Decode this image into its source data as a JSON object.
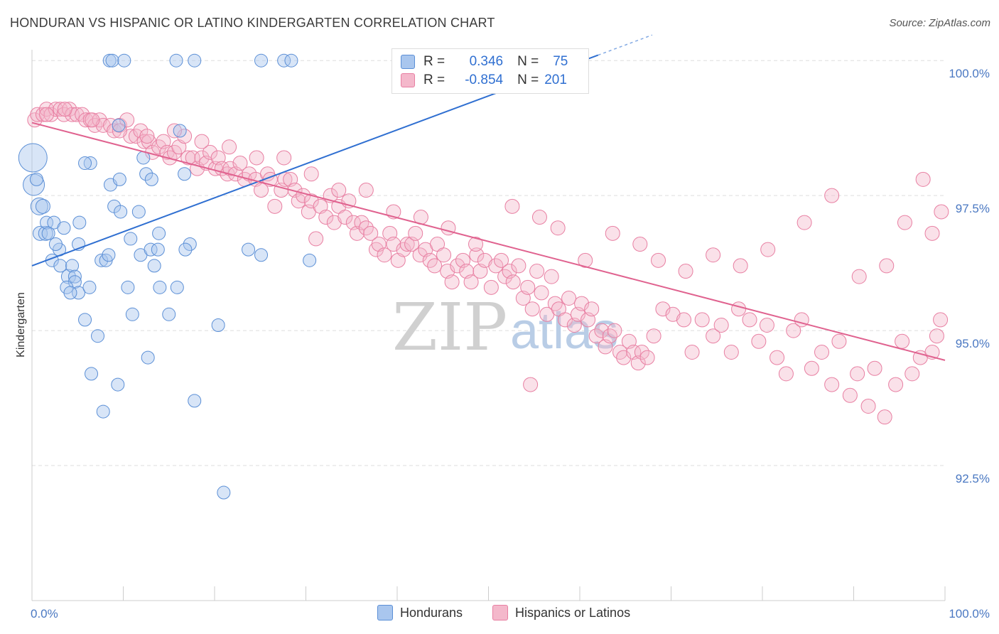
{
  "title": "HONDURAN VS HISPANIC OR LATINO KINDERGARTEN CORRELATION CHART",
  "source": "Source: ZipAtlas.com",
  "watermark": {
    "zip": "ZIP",
    "atlas": "atlas"
  },
  "legend": {
    "rows": [
      {
        "r_label": "R =",
        "r_value": "0.346",
        "n_label": "N =",
        "n_value": "75"
      },
      {
        "r_label": "R =",
        "r_value": "-0.854",
        "n_label": "N =",
        "n_value": "201"
      }
    ]
  },
  "colors": {
    "blue_fill": "#a9c6ee",
    "blue_stroke": "#5b8fd6",
    "blue_line": "#2f6fd1",
    "pink_fill": "#f4b8cb",
    "pink_stroke": "#e87fa2",
    "pink_line": "#e0628f",
    "tick_text": "#4a78c2"
  },
  "chart_data": {
    "type": "scatter",
    "title": "HONDURAN VS HISPANIC OR LATINO KINDERGARTEN CORRELATION CHART",
    "xlabel": "",
    "ylabel": "Kindergarten",
    "xlim": [
      0,
      100
    ],
    "ylim": [
      90.0,
      100.2
    ],
    "x_tick_labels": [
      "0.0%",
      "100.0%"
    ],
    "y_ticks": [
      92.5,
      95.0,
      97.5,
      100.0
    ],
    "y_tick_labels": [
      "92.5%",
      "95.0%",
      "97.5%",
      "100.0%"
    ],
    "grid": true,
    "legend_position": "bottom",
    "series": [
      {
        "name": "Hondurans",
        "color": "#a9c6ee",
        "trend": {
          "x": [
            0,
            62
          ],
          "y": [
            96.2,
            100.1
          ]
        },
        "points": [
          [
            0.1,
            98.2,
            2.0
          ],
          [
            0.2,
            97.7,
            1.5
          ],
          [
            0.8,
            97.3,
            1.2
          ],
          [
            1.2,
            97.3,
            1.0
          ],
          [
            0.9,
            96.8,
            1.0
          ],
          [
            1.5,
            96.8,
            1.0
          ],
          [
            1.6,
            97.0,
            0.9
          ],
          [
            2.4,
            97.0,
            0.9
          ],
          [
            2.2,
            96.3,
            0.9
          ],
          [
            3.1,
            96.2,
            0.9
          ],
          [
            3.5,
            96.9,
            0.9
          ],
          [
            3.0,
            96.5,
            0.9
          ],
          [
            4.0,
            96.0,
            1.0
          ],
          [
            4.4,
            96.2,
            0.9
          ],
          [
            4.7,
            96.0,
            0.9
          ],
          [
            4.7,
            95.9,
            0.9
          ],
          [
            5.1,
            95.7,
            0.9
          ],
          [
            3.8,
            95.8,
            0.9
          ],
          [
            6.3,
            95.8,
            0.9
          ],
          [
            5.8,
            95.2,
            0.9
          ],
          [
            7.6,
            96.3,
            0.9
          ],
          [
            8.1,
            96.3,
            0.9
          ],
          [
            8.4,
            96.4,
            0.9
          ],
          [
            5.1,
            96.6,
            0.9
          ],
          [
            5.2,
            97.0,
            0.9
          ],
          [
            6.4,
            98.1,
            0.9
          ],
          [
            8.6,
            97.7,
            0.9
          ],
          [
            9.0,
            97.3,
            0.9
          ],
          [
            9.7,
            97.2,
            0.9
          ],
          [
            9.6,
            97.8,
            0.9
          ],
          [
            12.2,
            98.2,
            0.9
          ],
          [
            12.5,
            97.9,
            0.9
          ],
          [
            13.1,
            97.8,
            0.9
          ],
          [
            11.7,
            97.2,
            0.9
          ],
          [
            10.8,
            96.7,
            0.9
          ],
          [
            11.9,
            96.4,
            0.9
          ],
          [
            13.0,
            96.5,
            0.9
          ],
          [
            13.8,
            96.5,
            0.9
          ],
          [
            13.9,
            96.8,
            0.9
          ],
          [
            13.4,
            96.2,
            0.9
          ],
          [
            14.0,
            95.8,
            0.9
          ],
          [
            10.5,
            95.8,
            0.9
          ],
          [
            11.0,
            95.3,
            0.9
          ],
          [
            15.0,
            95.3,
            0.9
          ],
          [
            15.9,
            95.8,
            0.9
          ],
          [
            16.2,
            98.7,
            0.9
          ],
          [
            16.7,
            97.9,
            0.9
          ],
          [
            17.3,
            96.6,
            0.9
          ],
          [
            16.8,
            96.5,
            0.9
          ],
          [
            7.2,
            94.9,
            0.9
          ],
          [
            6.5,
            94.2,
            0.9
          ],
          [
            9.4,
            94.0,
            0.9
          ],
          [
            7.8,
            93.5,
            0.9
          ],
          [
            12.7,
            94.5,
            0.9
          ],
          [
            17.8,
            93.7,
            0.9
          ],
          [
            20.4,
            95.1,
            0.9
          ],
          [
            21.0,
            92.0,
            0.9
          ],
          [
            23.7,
            96.5,
            0.9
          ],
          [
            25.1,
            96.4,
            0.9
          ],
          [
            30.4,
            96.3,
            0.9
          ],
          [
            8.5,
            100.0,
            0.9
          ],
          [
            8.8,
            100.0,
            0.9
          ],
          [
            10.1,
            100.0,
            0.9
          ],
          [
            15.8,
            100.0,
            0.9
          ],
          [
            17.8,
            100.0,
            0.9
          ],
          [
            25.1,
            100.0,
            0.9
          ],
          [
            27.6,
            100.0,
            0.9
          ],
          [
            28.4,
            100.0,
            0.9
          ],
          [
            40.3,
            100.0,
            0.9
          ],
          [
            9.5,
            98.8,
            0.9
          ],
          [
            5.8,
            98.1,
            0.9
          ],
          [
            1.8,
            96.8,
            0.9
          ],
          [
            4.2,
            95.7,
            0.9
          ],
          [
            2.6,
            96.6,
            0.9
          ],
          [
            0.5,
            97.8,
            0.9
          ]
        ]
      },
      {
        "name": "Hispanics or Latinos",
        "color": "#f4b8cb",
        "trend": {
          "x": [
            0,
            100
          ],
          "y": [
            98.85,
            94.45
          ]
        },
        "points": [
          [
            0.3,
            98.9
          ],
          [
            0.6,
            99.0
          ],
          [
            1.2,
            99.0
          ],
          [
            1.6,
            99.1
          ],
          [
            2.1,
            99.0
          ],
          [
            2.6,
            99.1
          ],
          [
            3.1,
            99.1
          ],
          [
            3.5,
            99.0
          ],
          [
            4.1,
            99.1
          ],
          [
            4.4,
            99.0
          ],
          [
            4.9,
            99.0
          ],
          [
            5.5,
            99.0
          ],
          [
            5.9,
            98.9
          ],
          [
            6.4,
            98.9
          ],
          [
            6.9,
            98.8
          ],
          [
            7.4,
            98.9
          ],
          [
            7.8,
            98.8
          ],
          [
            8.6,
            98.8
          ],
          [
            9.0,
            98.7
          ],
          [
            9.6,
            98.8
          ],
          [
            10.4,
            98.9
          ],
          [
            10.8,
            98.6
          ],
          [
            11.4,
            98.6
          ],
          [
            11.9,
            98.7
          ],
          [
            12.3,
            98.5
          ],
          [
            12.8,
            98.5
          ],
          [
            13.2,
            98.3
          ],
          [
            13.9,
            98.4
          ],
          [
            14.4,
            98.5
          ],
          [
            14.8,
            98.3
          ],
          [
            15.1,
            98.2
          ],
          [
            15.6,
            98.3
          ],
          [
            16.1,
            98.4
          ],
          [
            16.7,
            98.6
          ],
          [
            17.1,
            98.2
          ],
          [
            17.6,
            98.2
          ],
          [
            18.1,
            98.0
          ],
          [
            18.6,
            98.2
          ],
          [
            19.1,
            98.1
          ],
          [
            19.5,
            98.3
          ],
          [
            20.1,
            98.0
          ],
          [
            20.4,
            98.2
          ],
          [
            20.8,
            98.0
          ],
          [
            21.4,
            97.9
          ],
          [
            21.7,
            98.0
          ],
          [
            22.3,
            97.9
          ],
          [
            22.8,
            98.1
          ],
          [
            23.3,
            97.8
          ],
          [
            23.8,
            97.9
          ],
          [
            24.5,
            97.8
          ],
          [
            25.1,
            97.6
          ],
          [
            25.8,
            97.9
          ],
          [
            26.1,
            97.8
          ],
          [
            26.6,
            97.3
          ],
          [
            27.3,
            97.6
          ],
          [
            27.7,
            97.8
          ],
          [
            28.3,
            97.8
          ],
          [
            28.8,
            97.6
          ],
          [
            29.2,
            97.4
          ],
          [
            29.7,
            97.5
          ],
          [
            30.3,
            97.2
          ],
          [
            30.6,
            97.4
          ],
          [
            31.1,
            96.7
          ],
          [
            31.6,
            97.3
          ],
          [
            32.2,
            97.1
          ],
          [
            32.7,
            97.5
          ],
          [
            33.1,
            97.0
          ],
          [
            33.6,
            97.3
          ],
          [
            34.3,
            97.1
          ],
          [
            34.7,
            97.4
          ],
          [
            35.2,
            97.0
          ],
          [
            35.6,
            96.8
          ],
          [
            36.1,
            97.0
          ],
          [
            36.6,
            96.9
          ],
          [
            37.1,
            96.8
          ],
          [
            37.7,
            96.5
          ],
          [
            38.0,
            96.6
          ],
          [
            38.6,
            96.4
          ],
          [
            39.2,
            96.8
          ],
          [
            39.6,
            96.6
          ],
          [
            40.1,
            96.3
          ],
          [
            40.7,
            96.5
          ],
          [
            41.1,
            96.6
          ],
          [
            41.6,
            96.6
          ],
          [
            42.0,
            96.8
          ],
          [
            42.5,
            96.4
          ],
          [
            43.1,
            96.5
          ],
          [
            43.6,
            96.3
          ],
          [
            44.1,
            96.2
          ],
          [
            44.4,
            96.6
          ],
          [
            45.1,
            96.4
          ],
          [
            45.5,
            96.1
          ],
          [
            46.0,
            95.9
          ],
          [
            46.6,
            96.2
          ],
          [
            47.2,
            96.3
          ],
          [
            47.6,
            96.1
          ],
          [
            48.1,
            95.9
          ],
          [
            48.7,
            96.4
          ],
          [
            49.1,
            96.1
          ],
          [
            49.6,
            96.3
          ],
          [
            50.3,
            95.8
          ],
          [
            50.8,
            96.2
          ],
          [
            51.4,
            96.3
          ],
          [
            51.8,
            96.0
          ],
          [
            52.3,
            96.1
          ],
          [
            52.7,
            95.9
          ],
          [
            53.3,
            96.2
          ],
          [
            53.8,
            95.6
          ],
          [
            54.3,
            95.8
          ],
          [
            54.8,
            95.4
          ],
          [
            55.3,
            96.1
          ],
          [
            55.8,
            95.7
          ],
          [
            56.4,
            95.3
          ],
          [
            56.9,
            96.0
          ],
          [
            57.3,
            95.5
          ],
          [
            57.7,
            95.4
          ],
          [
            58.4,
            95.2
          ],
          [
            58.8,
            95.6
          ],
          [
            59.4,
            95.1
          ],
          [
            59.8,
            95.3
          ],
          [
            60.2,
            95.5
          ],
          [
            60.9,
            95.2
          ],
          [
            61.3,
            95.4
          ],
          [
            61.8,
            94.9
          ],
          [
            62.4,
            95.0
          ],
          [
            62.8,
            94.7
          ],
          [
            63.3,
            94.9
          ],
          [
            63.8,
            95.0
          ],
          [
            64.4,
            94.6
          ],
          [
            64.8,
            94.5
          ],
          [
            65.4,
            94.8
          ],
          [
            65.9,
            94.6
          ],
          [
            66.4,
            94.4
          ],
          [
            66.8,
            94.6
          ],
          [
            67.4,
            94.5
          ],
          [
            68.1,
            94.9
          ],
          [
            69.1,
            95.4
          ],
          [
            70.2,
            95.3
          ],
          [
            71.4,
            95.2
          ],
          [
            72.3,
            94.6
          ],
          [
            73.4,
            95.2
          ],
          [
            74.6,
            94.9
          ],
          [
            75.5,
            95.1
          ],
          [
            76.6,
            94.6
          ],
          [
            77.4,
            95.4
          ],
          [
            78.6,
            95.2
          ],
          [
            79.6,
            94.8
          ],
          [
            80.5,
            95.1
          ],
          [
            81.6,
            94.5
          ],
          [
            82.6,
            94.2
          ],
          [
            83.4,
            95.0
          ],
          [
            84.3,
            95.2
          ],
          [
            85.4,
            94.3
          ],
          [
            86.5,
            94.6
          ],
          [
            87.6,
            94.0
          ],
          [
            88.4,
            94.8
          ],
          [
            89.6,
            93.8
          ],
          [
            90.4,
            94.2
          ],
          [
            91.6,
            93.6
          ],
          [
            92.3,
            94.3
          ],
          [
            93.4,
            93.4
          ],
          [
            94.6,
            94.0
          ],
          [
            95.3,
            94.8
          ],
          [
            96.4,
            94.2
          ],
          [
            97.3,
            94.5
          ],
          [
            98.6,
            94.6
          ],
          [
            99.1,
            94.9
          ],
          [
            99.5,
            95.2
          ],
          [
            84.6,
            97.0
          ],
          [
            87.6,
            97.5
          ],
          [
            90.6,
            96.0
          ],
          [
            93.6,
            96.2
          ],
          [
            95.6,
            97.0
          ],
          [
            97.6,
            97.8
          ],
          [
            98.6,
            96.8
          ],
          [
            99.6,
            97.2
          ],
          [
            77.6,
            96.2
          ],
          [
            80.6,
            96.5
          ],
          [
            74.6,
            96.4
          ],
          [
            71.6,
            96.1
          ],
          [
            68.6,
            96.3
          ],
          [
            66.6,
            96.6
          ],
          [
            63.6,
            96.8
          ],
          [
            60.6,
            96.3
          ],
          [
            57.6,
            96.9
          ],
          [
            55.6,
            97.1
          ],
          [
            52.6,
            97.3
          ],
          [
            48.6,
            96.6
          ],
          [
            45.6,
            96.9
          ],
          [
            42.6,
            97.1
          ],
          [
            39.6,
            97.2
          ],
          [
            36.6,
            97.6
          ],
          [
            33.6,
            97.6
          ],
          [
            30.6,
            97.9
          ],
          [
            27.6,
            98.2
          ],
          [
            24.6,
            98.2
          ],
          [
            21.6,
            98.4
          ],
          [
            18.6,
            98.5
          ],
          [
            15.6,
            98.7
          ],
          [
            12.6,
            98.6
          ],
          [
            9.6,
            98.7
          ],
          [
            6.6,
            98.9
          ],
          [
            3.6,
            99.1
          ],
          [
            1.6,
            99.0
          ],
          [
            54.6,
            94.0
          ]
        ]
      }
    ]
  },
  "bottom_legend": {
    "items": [
      {
        "label": "Hondurans"
      },
      {
        "label": "Hispanics or Latinos"
      }
    ]
  }
}
